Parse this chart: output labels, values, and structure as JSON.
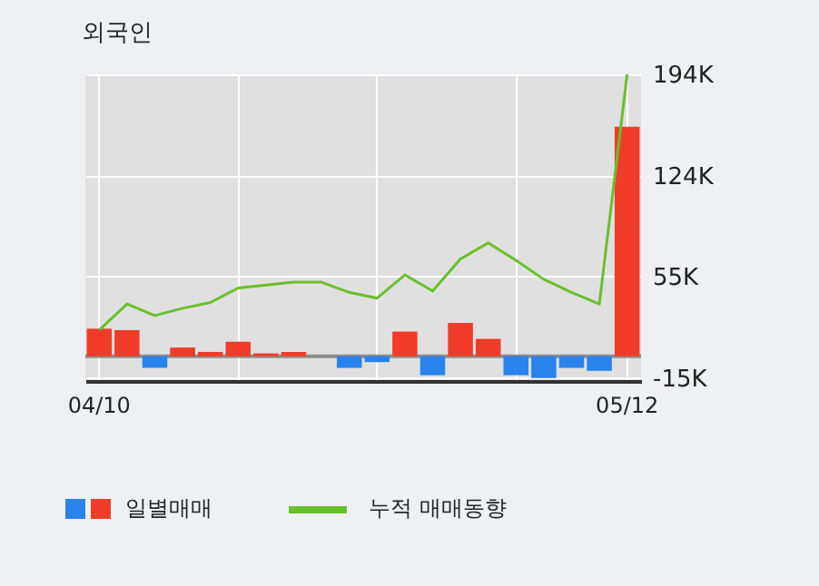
{
  "chart_data": {
    "type": "bar",
    "title": "외국인",
    "categories": [
      "04/10",
      null,
      null,
      null,
      null,
      null,
      null,
      null,
      null,
      null,
      null,
      null,
      null,
      null,
      null,
      null,
      null,
      null,
      null,
      "05/12"
    ],
    "series": [
      {
        "name": "일별매매",
        "values": [
          19,
          18,
          -8,
          6,
          3,
          10,
          2,
          3,
          0,
          -8,
          -4,
          17,
          -13,
          23,
          12,
          -13,
          -15,
          -8,
          -10,
          158
        ],
        "colors": [
          "#f03c28",
          "#f03c28",
          "#2a82ec",
          "#f03c28",
          "#f03c28",
          "#f03c28",
          "#f03c28",
          "#f03c28",
          "#f03c28",
          "#2a82ec",
          "#2a82ec",
          "#f03c28",
          "#2a82ec",
          "#f03c28",
          "#f03c28",
          "#2a82ec",
          "#2a82ec",
          "#2a82ec",
          "#2a82ec",
          "#f03c28"
        ]
      },
      {
        "name": "누적 매매동향",
        "type": "line",
        "color": "#6abf2a",
        "values": [
          18,
          36,
          28,
          33,
          37,
          47,
          49,
          51,
          51,
          44,
          40,
          56,
          45,
          67,
          78,
          66,
          53,
          44,
          36,
          194
        ]
      }
    ],
    "ylim": [
      -17,
      194
    ],
    "yticks": [
      {
        "value": 194,
        "label": "194K"
      },
      {
        "value": 124,
        "label": "124K"
      },
      {
        "value": 55,
        "label": "55K"
      },
      {
        "value": -15,
        "label": "-15K"
      }
    ],
    "ref_lines": [
      {
        "axis": "y",
        "value": 0,
        "color": "#8c8c8c"
      }
    ],
    "grid": true,
    "legend": "bottom"
  }
}
